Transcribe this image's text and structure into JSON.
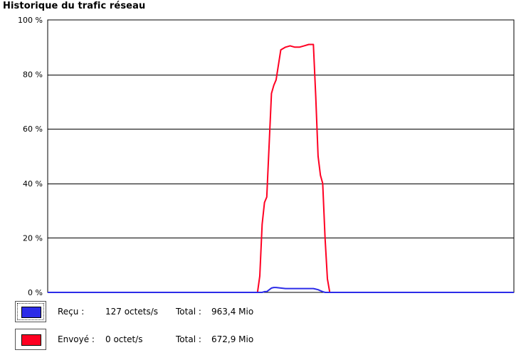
{
  "window": {
    "title": "Historique du trafic réseau"
  },
  "colors": {
    "received": "#2c2ce8",
    "sent": "#ff0022",
    "grid": "#000000"
  },
  "chart_data": {
    "type": "line",
    "title": "Historique du trafic réseau",
    "ylim": [
      0,
      100
    ],
    "y_ticks": [
      "100 %",
      "80 %",
      "60 %",
      "40 %",
      "20 %",
      "0 %"
    ],
    "y_tick_values": [
      100,
      80,
      60,
      40,
      20,
      0
    ],
    "x": [
      0,
      2,
      4,
      6,
      8,
      10,
      12,
      14,
      16,
      18,
      20,
      22,
      24,
      26,
      28,
      30,
      32,
      34,
      36,
      38,
      40,
      42,
      44,
      45,
      45.5,
      46,
      46.5,
      47,
      48,
      48.5,
      49,
      50,
      51,
      52,
      53,
      54,
      55,
      56,
      57,
      57.5,
      58,
      58.5,
      59,
      59.5,
      60,
      60.5,
      61,
      62,
      64,
      66,
      68,
      70,
      72,
      74,
      76,
      78,
      80,
      82,
      84,
      86,
      88,
      90,
      92,
      94,
      96,
      98,
      100
    ],
    "series": [
      {
        "name": "Envoyé",
        "color": "#ff0022",
        "values": [
          0,
          0,
          0,
          0,
          0,
          0,
          0,
          0,
          0,
          0,
          0,
          0,
          0,
          0,
          0,
          0,
          0,
          0,
          0,
          0,
          0,
          0,
          0,
          0,
          6,
          25,
          33,
          35,
          73,
          76,
          78,
          89,
          90,
          90.5,
          90,
          90,
          90.5,
          91,
          91,
          72,
          50,
          43,
          40,
          20,
          5,
          0,
          0,
          0,
          0,
          0,
          0,
          0,
          0,
          0,
          0,
          0,
          0,
          0,
          0,
          0,
          0,
          0,
          0,
          0,
          0,
          0,
          0
        ]
      },
      {
        "name": "Reçu",
        "color": "#2c2ce8",
        "values": [
          0,
          0,
          0,
          0,
          0,
          0,
          0,
          0,
          0,
          0,
          0,
          0,
          0,
          0,
          0,
          0,
          0,
          0,
          0,
          0,
          0,
          0,
          0,
          0,
          0,
          0,
          0.3,
          0.3,
          1.6,
          1.8,
          1.8,
          1.6,
          1.4,
          1.4,
          1.4,
          1.4,
          1.4,
          1.4,
          1.4,
          1.2,
          1.0,
          0.6,
          0.3,
          0,
          0,
          0,
          0,
          0,
          0,
          0,
          0,
          0,
          0,
          0,
          0,
          0,
          0,
          0,
          0,
          0,
          0,
          0,
          0,
          0,
          0,
          0,
          0
        ]
      }
    ]
  },
  "legend": {
    "received": {
      "label": "Reçu :",
      "rate": "127 octets/s",
      "total_label": "Total :",
      "total": "963,4 Mio"
    },
    "sent": {
      "label": "Envoyé :",
      "rate": "0 octet/s",
      "total_label": "Total :",
      "total": "672,9 Mio"
    }
  }
}
